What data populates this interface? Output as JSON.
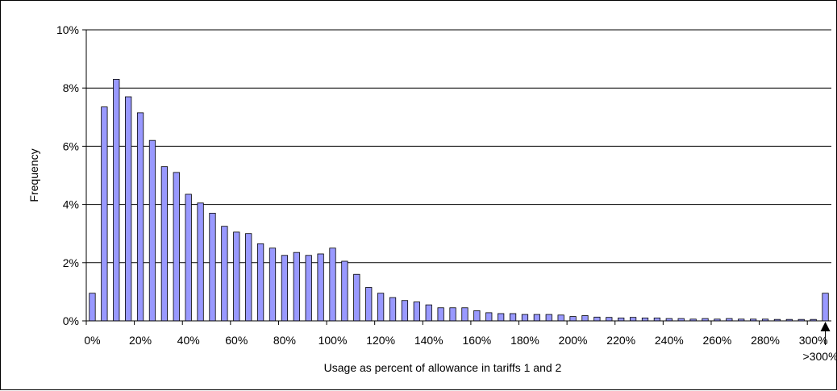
{
  "chart_data": {
    "type": "bar",
    "title": "",
    "xlabel": "Usage as percent of allowance in tariffs 1 and 2",
    "ylabel": "Frequency",
    "ylim": [
      0,
      10
    ],
    "y_unit": "%",
    "yticks": [
      "0%",
      "2%",
      "4%",
      "6%",
      "8%",
      "10%"
    ],
    "xticks": [
      "0%",
      "20%",
      "40%",
      "60%",
      "80%",
      "100%",
      "120%",
      "140%",
      "160%",
      "180%",
      "200%",
      "220%",
      "240%",
      "260%",
      "280%",
      "300%"
    ],
    "overflow_label": ">300%",
    "grid": true,
    "legend": "none",
    "bar_color": "#9999ff",
    "bar_width_pct_units": 5,
    "x": [
      0,
      5,
      10,
      15,
      20,
      25,
      30,
      35,
      40,
      45,
      50,
      55,
      60,
      65,
      70,
      75,
      80,
      85,
      90,
      95,
      100,
      105,
      110,
      115,
      120,
      125,
      130,
      135,
      140,
      145,
      150,
      155,
      160,
      165,
      170,
      175,
      180,
      185,
      190,
      195,
      200,
      205,
      210,
      215,
      220,
      225,
      230,
      235,
      240,
      245,
      250,
      255,
      260,
      265,
      270,
      275,
      280,
      285,
      290,
      295,
      300,
      ">300%"
    ],
    "values": [
      0.95,
      7.35,
      8.3,
      7.7,
      7.15,
      6.2,
      5.3,
      5.1,
      4.35,
      4.05,
      3.7,
      3.25,
      3.05,
      3.0,
      2.65,
      2.5,
      2.25,
      2.35,
      2.25,
      2.3,
      2.5,
      2.05,
      1.6,
      1.15,
      0.95,
      0.8,
      0.7,
      0.65,
      0.55,
      0.45,
      0.45,
      0.45,
      0.35,
      0.28,
      0.25,
      0.25,
      0.22,
      0.22,
      0.22,
      0.2,
      0.15,
      0.18,
      0.13,
      0.12,
      0.1,
      0.12,
      0.1,
      0.1,
      0.08,
      0.08,
      0.06,
      0.08,
      0.06,
      0.08,
      0.06,
      0.06,
      0.06,
      0.05,
      0.05,
      0.05,
      0.05,
      0.95
    ]
  }
}
